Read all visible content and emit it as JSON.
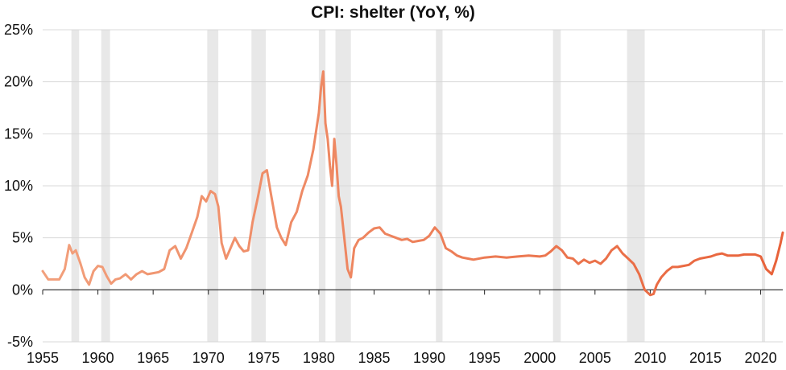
{
  "chart_data": {
    "type": "line",
    "title": "CPI: shelter (YoY, %)",
    "xlabel": "",
    "ylabel": "",
    "xlim": [
      1955,
      2022
    ],
    "ylim": [
      -5,
      25
    ],
    "y_ticks": [
      25,
      20,
      15,
      10,
      5,
      0,
      -5
    ],
    "y_tick_labels": [
      "25%",
      "20%",
      "15%",
      "10%",
      "5%",
      "0%",
      "-5%"
    ],
    "x_ticks": [
      1955,
      1960,
      1965,
      1970,
      1975,
      1980,
      1985,
      1990,
      1995,
      2000,
      2005,
      2010,
      2015,
      2020
    ],
    "x_tick_labels": [
      "1955",
      "1960",
      "1965",
      "1970",
      "1975",
      "1980",
      "1985",
      "1990",
      "1995",
      "2000",
      "2005",
      "2010",
      "2015",
      "2020"
    ],
    "grid": "horizontal",
    "recession_bands": [
      [
        1957.6,
        1958.3
      ],
      [
        1960.3,
        1961.1
      ],
      [
        1969.9,
        1970.9
      ],
      [
        1973.9,
        1975.2
      ],
      [
        1980.0,
        1980.6
      ],
      [
        1981.5,
        1982.9
      ],
      [
        1990.6,
        1991.2
      ],
      [
        2001.2,
        2001.9
      ],
      [
        2007.9,
        2009.5
      ],
      [
        2020.1,
        2020.4
      ]
    ],
    "colors": {
      "line_start": "#f2a07c",
      "line_end": "#e8623a",
      "band": "#e8e8e8",
      "grid": "#d9d9d9",
      "axis": "#222222"
    },
    "series": [
      {
        "x": [
          1955.0,
          1955.5,
          1956.0,
          1956.5,
          1957.0,
          1957.4,
          1957.7,
          1958.0,
          1958.4,
          1958.8,
          1959.2,
          1959.6,
          1960.0,
          1960.4,
          1960.8,
          1961.2,
          1961.6,
          1962.0,
          1962.5,
          1963.0,
          1963.5,
          1964.0,
          1964.5,
          1965.0,
          1965.5,
          1966.0,
          1966.5,
          1967.0,
          1967.5,
          1968.0,
          1968.5,
          1969.0,
          1969.4,
          1969.8,
          1970.2,
          1970.6,
          1970.9,
          1971.2,
          1971.6,
          1972.0,
          1972.4,
          1972.8,
          1973.2,
          1973.6,
          1974.0,
          1974.5,
          1974.9,
          1975.3,
          1975.7,
          1976.2,
          1976.6,
          1977.0,
          1977.5,
          1978.0,
          1978.5,
          1979.0,
          1979.5,
          1980.0,
          1980.2,
          1980.4,
          1980.6,
          1980.8,
          1981.0,
          1981.2,
          1981.4,
          1981.6,
          1981.8,
          1982.0,
          1982.3,
          1982.6,
          1982.9,
          1983.2,
          1983.6,
          1984.0,
          1984.5,
          1985.0,
          1985.5,
          1986.0,
          1986.5,
          1987.0,
          1987.5,
          1988.0,
          1988.5,
          1989.0,
          1989.5,
          1990.0,
          1990.5,
          1991.0,
          1991.5,
          1992.0,
          1992.5,
          1993.0,
          1993.5,
          1994.0,
          1995.0,
          1996.0,
          1997.0,
          1998.0,
          1999.0,
          2000.0,
          2000.5,
          2001.0,
          2001.5,
          2002.0,
          2002.5,
          2003.0,
          2003.5,
          2004.0,
          2004.5,
          2005.0,
          2005.5,
          2006.0,
          2006.5,
          2007.0,
          2007.5,
          2008.0,
          2008.5,
          2009.0,
          2009.5,
          2010.0,
          2010.3,
          2010.6,
          2011.0,
          2011.5,
          2012.0,
          2012.5,
          2013.0,
          2013.5,
          2014.0,
          2014.5,
          2015.0,
          2015.5,
          2016.0,
          2016.5,
          2017.0,
          2017.5,
          2018.0,
          2018.5,
          2019.0,
          2019.5,
          2020.0,
          2020.5,
          2021.0,
          2021.4,
          2021.8,
          2022.0
        ],
        "values": [
          1.8,
          1.0,
          1.0,
          1.0,
          2.0,
          4.3,
          3.5,
          3.8,
          2.6,
          1.2,
          0.5,
          1.8,
          2.3,
          2.2,
          1.3,
          0.6,
          1.0,
          1.1,
          1.5,
          1.0,
          1.5,
          1.8,
          1.5,
          1.6,
          1.7,
          2.0,
          3.8,
          4.2,
          3.0,
          4.0,
          5.5,
          7.0,
          9.0,
          8.5,
          9.5,
          9.2,
          8.0,
          4.5,
          3.0,
          4.0,
          5.0,
          4.2,
          3.7,
          3.8,
          6.5,
          9.0,
          11.2,
          11.5,
          9.0,
          6.0,
          5.0,
          4.3,
          6.5,
          7.5,
          9.5,
          11.0,
          13.5,
          17.0,
          19.5,
          21.0,
          16.0,
          14.5,
          12.0,
          10.0,
          14.5,
          12.0,
          9.0,
          8.0,
          5.0,
          2.0,
          1.2,
          4.0,
          4.8,
          5.0,
          5.5,
          5.9,
          6.0,
          5.4,
          5.2,
          5.0,
          4.8,
          4.9,
          4.6,
          4.7,
          4.8,
          5.2,
          6.0,
          5.4,
          4.0,
          3.7,
          3.3,
          3.1,
          3.0,
          2.9,
          3.1,
          3.2,
          3.1,
          3.2,
          3.3,
          3.2,
          3.3,
          3.7,
          4.2,
          3.8,
          3.1,
          3.0,
          2.5,
          2.9,
          2.6,
          2.8,
          2.5,
          3.0,
          3.8,
          4.2,
          3.5,
          3.0,
          2.5,
          1.5,
          0.0,
          -0.5,
          -0.4,
          0.5,
          1.2,
          1.8,
          2.2,
          2.2,
          2.3,
          2.4,
          2.8,
          3.0,
          3.1,
          3.2,
          3.4,
          3.5,
          3.3,
          3.3,
          3.3,
          3.4,
          3.4,
          3.4,
          3.2,
          2.0,
          1.5,
          2.8,
          4.5,
          5.5
        ]
      }
    ]
  }
}
